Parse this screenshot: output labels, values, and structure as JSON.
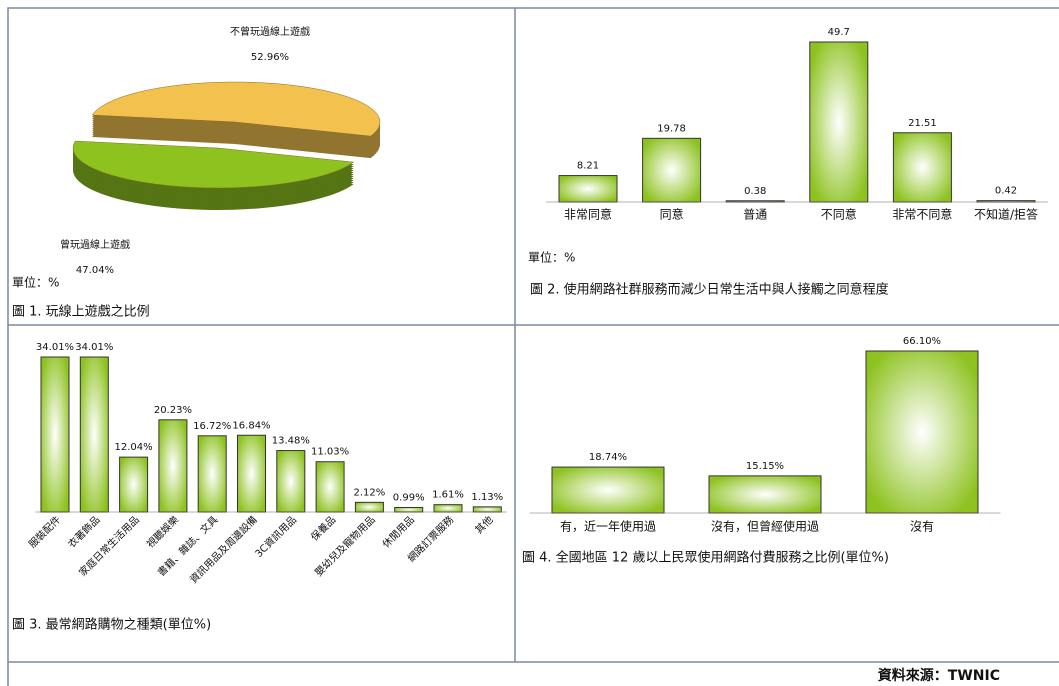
{
  "chart_data": [
    {
      "type": "pie",
      "title": "圖 1. 玩線上遊戲之比例",
      "annotation": "單位：%",
      "categories": [
        "不曾玩過線上遊戲",
        "曾玩過線上遊戲"
      ],
      "values": [
        52.96,
        47.04
      ],
      "value_labels": [
        "52.96%",
        "47.04%"
      ],
      "colors": [
        "#f2c14e",
        "#8dc21f"
      ]
    },
    {
      "type": "bar",
      "title": "圖 2. 使用網路社群服務而減少日常生活中與人接觸之同意程度",
      "annotation": "單位：%",
      "categories": [
        "非常同意",
        "同意",
        "普通",
        "不同意",
        "非常不同意",
        "不知道/拒答"
      ],
      "values": [
        8.21,
        19.78,
        0.38,
        49.7,
        21.51,
        0.42
      ],
      "color": "#8dc21f"
    },
    {
      "type": "bar",
      "title": "圖 3. 最常網路購物之種類(單位%)",
      "categories": [
        "服裝配件",
        "衣著飾品",
        "家庭日常生活用品",
        "視聽娛樂",
        "書籍、雜誌、文具",
        "資訊用品及周邊設備",
        "3C資訊用品",
        "保養品",
        "嬰幼兒及寵物用品",
        "休閒用品",
        "網路訂票服務",
        "其他"
      ],
      "values": [
        34.01,
        34.01,
        12.04,
        20.23,
        16.72,
        16.84,
        13.48,
        11.03,
        2.12,
        0.99,
        1.61,
        1.13
      ],
      "value_labels": [
        "34.01%",
        "34.01%",
        "12.04%",
        "20.23%",
        "16.72%",
        "16.84%",
        "13.48%",
        "11.03%",
        "2.12%",
        "0.99%",
        "1.61%",
        "1.13%"
      ],
      "color": "#8dc21f"
    },
    {
      "type": "bar",
      "title": "圖 4. 全國地區 12 歲以上民眾使用網路付費服務之比例(單位%)",
      "categories": [
        "有，近一年使用過",
        "沒有，但曾經使用過",
        "沒有"
      ],
      "values": [
        18.74,
        15.15,
        66.1
      ],
      "value_labels": [
        "18.74%",
        "15.15%",
        "66.10%"
      ],
      "color": "#8dc21f"
    }
  ],
  "source": "資料來源：TWNIC"
}
